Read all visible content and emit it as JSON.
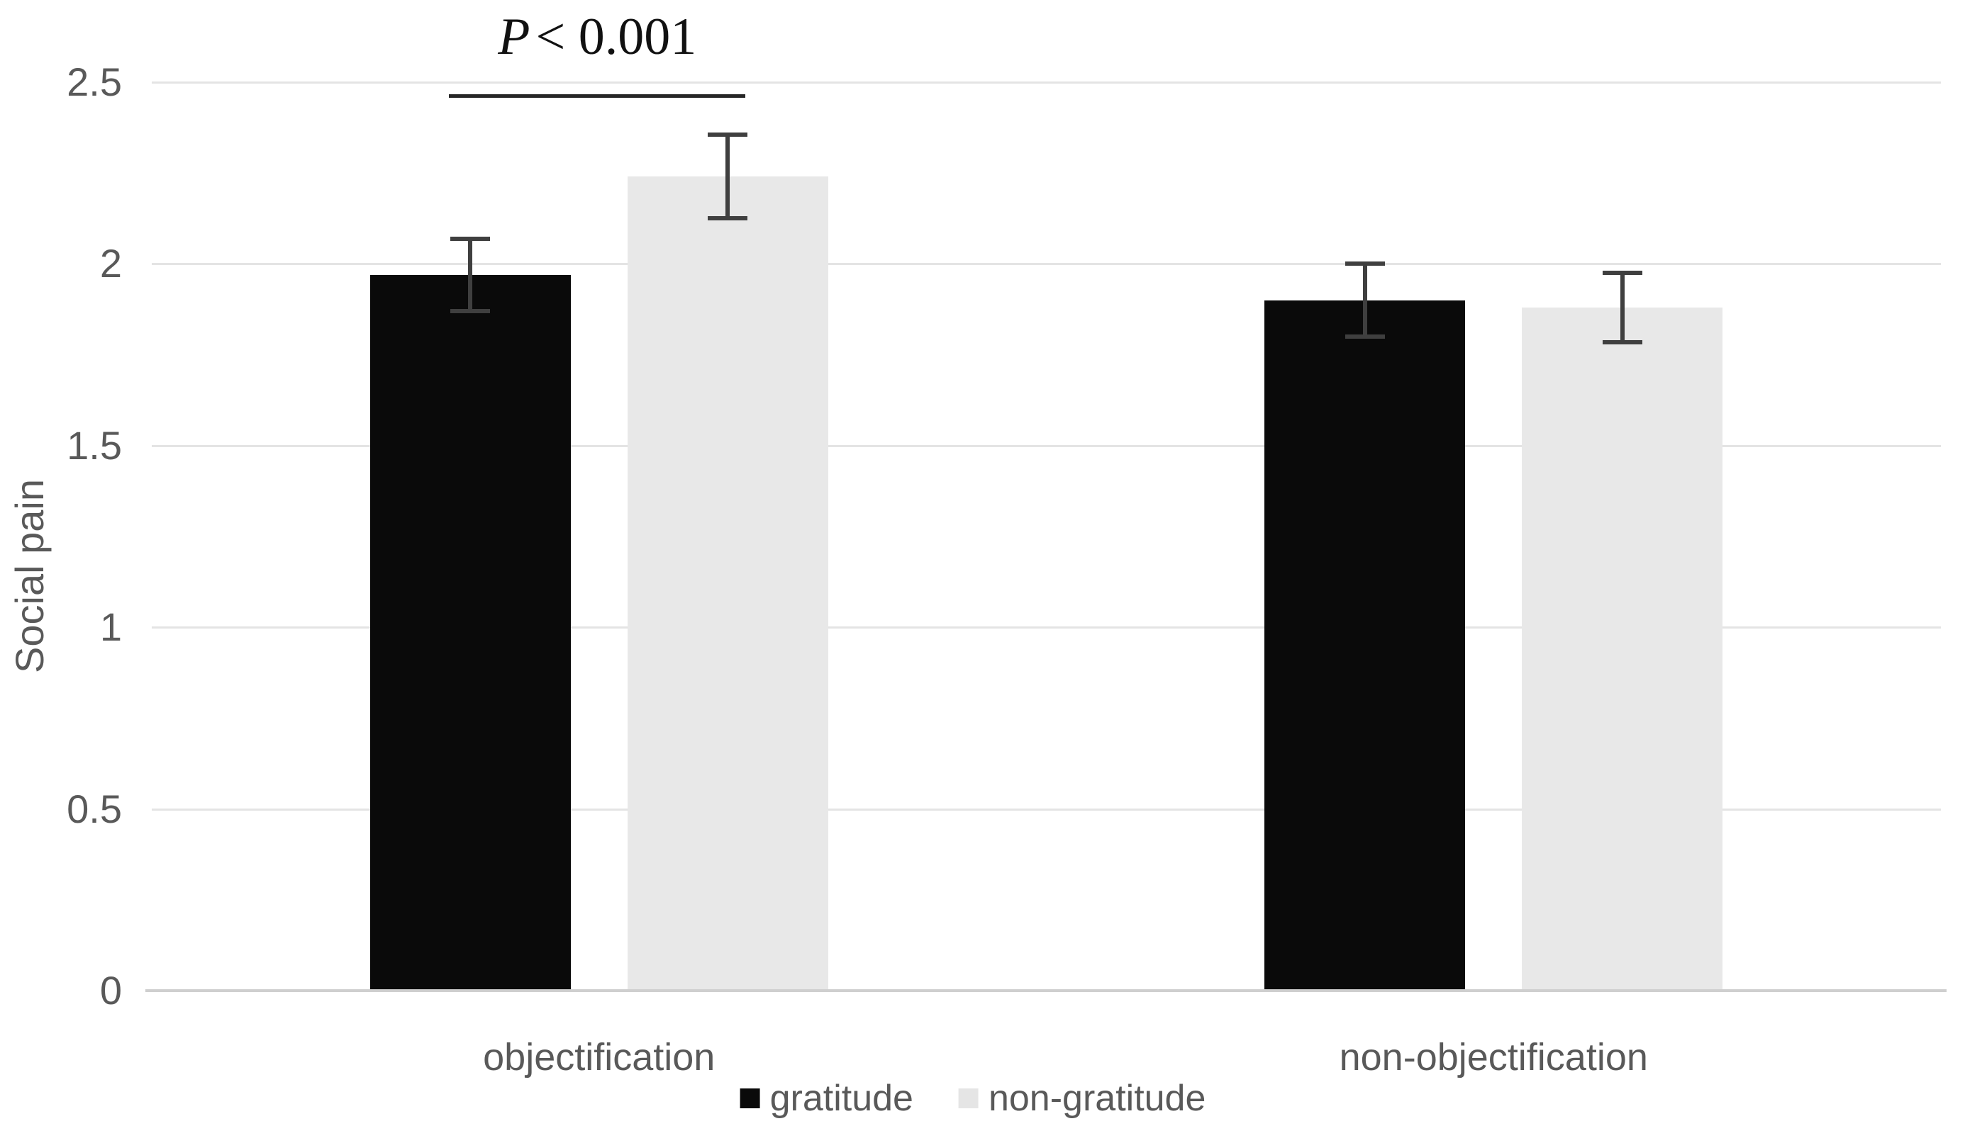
{
  "chart_data": {
    "type": "bar",
    "title": "",
    "xlabel": "",
    "ylabel": "Social pain",
    "categories": [
      "objectification",
      "non-objectification"
    ],
    "series": [
      {
        "name": "gratitude",
        "color": "#0a0a0a",
        "values": [
          1.97,
          1.9
        ],
        "errors": [
          0.1,
          0.1
        ]
      },
      {
        "name": "non-gratitude",
        "color": "#e8e8e8",
        "values": [
          2.24,
          1.88
        ],
        "errors": [
          0.115,
          0.095
        ]
      }
    ],
    "ylim": [
      0,
      2.5
    ],
    "yticks": [
      0,
      0.5,
      1,
      1.5,
      2,
      2.5
    ],
    "ytick_labels": [
      "0",
      "0.5",
      "1",
      "1.5",
      "2",
      "2.5"
    ],
    "grid": true,
    "legend_position": "bottom",
    "annotation": {
      "text": "P < 0.001",
      "p_symbol": "P",
      "comparison": "< 0.001",
      "category": "objectification"
    }
  },
  "legend": {
    "items": [
      {
        "label": "gratitude",
        "color": "#0a0a0a"
      },
      {
        "label": "non-gratitude",
        "color": "#e5e5e5"
      }
    ]
  },
  "colors": {
    "background": "#ffffff",
    "gridline": "#e4e4e4",
    "axis_line": "#cfcfcf",
    "error_bar": "#3f3f3f",
    "significance_line": "#262626",
    "tick_text": "#595959",
    "annotation_text": "#111111"
  }
}
